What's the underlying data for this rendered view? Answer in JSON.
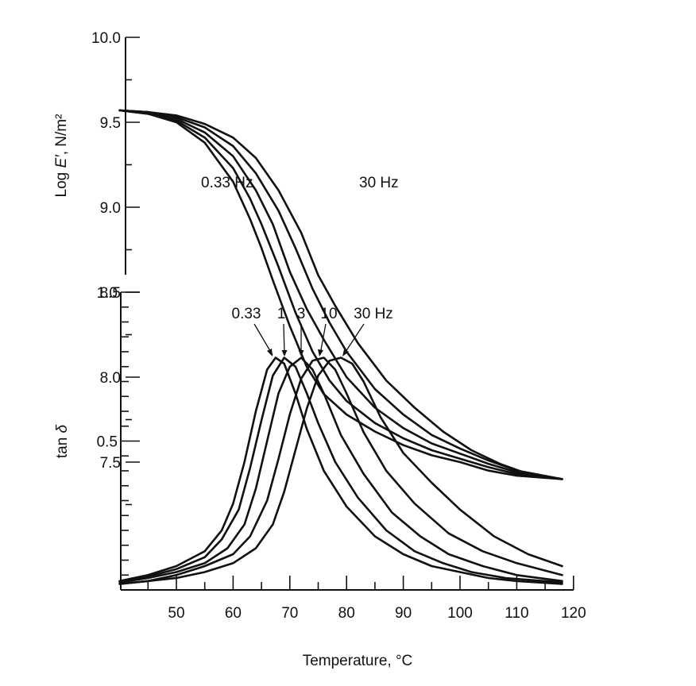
{
  "chart_data": [
    {
      "type": "line",
      "ylabel_prefix": "Log ",
      "ylabel_symbol": "E′",
      "ylabel_suffix": ", N/m²",
      "ylim": [
        7.2,
        10.0
      ],
      "yticks": [
        7.5,
        8.0,
        8.5,
        9.0,
        9.5,
        10.0
      ],
      "ytick_labels": [
        "7.5",
        "8.0",
        "8.5",
        "9.0",
        "9.5",
        "10.0"
      ],
      "xlim": [
        40,
        118
      ],
      "grid": false,
      "annotations": [
        "0.33 Hz",
        "30 Hz"
      ],
      "series": [
        {
          "values": [
            [
              40,
              9.57
            ],
            [
              45,
              9.55
            ],
            [
              50,
              9.5
            ],
            [
              55,
              9.38
            ],
            [
              60,
              9.15
            ],
            [
              63,
              8.93
            ],
            [
              65,
              8.76
            ],
            [
              67,
              8.57
            ],
            [
              70,
              8.3
            ],
            [
              73,
              8.06
            ],
            [
              76,
              7.9
            ],
            [
              80,
              7.78
            ],
            [
              85,
              7.68
            ],
            [
              90,
              7.6
            ],
            [
              95,
              7.54
            ],
            [
              100,
              7.5
            ],
            [
              105,
              7.45
            ],
            [
              110,
              7.42
            ],
            [
              118,
              7.4
            ]
          ]
        },
        {
          "values": [
            [
              40,
              9.57
            ],
            [
              45,
              9.55
            ],
            [
              50,
              9.51
            ],
            [
              55,
              9.41
            ],
            [
              60,
              9.23
            ],
            [
              63,
              9.05
            ],
            [
              65,
              8.9
            ],
            [
              68,
              8.65
            ],
            [
              71,
              8.38
            ],
            [
              74,
              8.15
            ],
            [
              77,
              7.98
            ],
            [
              80,
              7.86
            ],
            [
              85,
              7.73
            ],
            [
              90,
              7.64
            ],
            [
              95,
              7.57
            ],
            [
              100,
              7.52
            ],
            [
              105,
              7.47
            ],
            [
              110,
              7.43
            ],
            [
              118,
              7.4
            ]
          ]
        },
        {
          "values": [
            [
              40,
              9.57
            ],
            [
              45,
              9.56
            ],
            [
              50,
              9.52
            ],
            [
              55,
              9.44
            ],
            [
              60,
              9.3
            ],
            [
              64,
              9.1
            ],
            [
              67,
              8.9
            ],
            [
              70,
              8.62
            ],
            [
              73,
              8.4
            ],
            [
              76,
              8.22
            ],
            [
              80,
              8.0
            ],
            [
              85,
              7.82
            ],
            [
              90,
              7.7
            ],
            [
              95,
              7.61
            ],
            [
              100,
              7.55
            ],
            [
              105,
              7.49
            ],
            [
              110,
              7.44
            ],
            [
              118,
              7.4
            ]
          ]
        },
        {
          "values": [
            [
              40,
              9.57
            ],
            [
              45,
              9.56
            ],
            [
              50,
              9.53
            ],
            [
              55,
              9.47
            ],
            [
              60,
              9.36
            ],
            [
              64,
              9.2
            ],
            [
              68,
              8.98
            ],
            [
              71,
              8.76
            ],
            [
              74,
              8.52
            ],
            [
              77,
              8.32
            ],
            [
              80,
              8.15
            ],
            [
              85,
              7.93
            ],
            [
              90,
              7.78
            ],
            [
              95,
              7.66
            ],
            [
              100,
              7.58
            ],
            [
              105,
              7.51
            ],
            [
              110,
              7.45
            ],
            [
              118,
              7.4
            ]
          ]
        },
        {
          "values": [
            [
              40,
              9.57
            ],
            [
              45,
              9.56
            ],
            [
              50,
              9.54
            ],
            [
              55,
              9.49
            ],
            [
              60,
              9.41
            ],
            [
              64,
              9.29
            ],
            [
              68,
              9.1
            ],
            [
              72,
              8.85
            ],
            [
              75,
              8.6
            ],
            [
              78,
              8.42
            ],
            [
              82,
              8.2
            ],
            [
              87,
              7.98
            ],
            [
              92,
              7.82
            ],
            [
              97,
              7.68
            ],
            [
              102,
              7.57
            ],
            [
              107,
              7.49
            ],
            [
              112,
              7.43
            ],
            [
              118,
              7.4
            ]
          ]
        }
      ]
    },
    {
      "type": "line",
      "ylabel_prefix": "tan ",
      "ylabel_symbol": "δ",
      "ylim": [
        0.0,
        1.0
      ],
      "yticks": [
        0.5,
        1.0
      ],
      "ytick_labels": [
        "0.5",
        "1.0"
      ],
      "xlabel": "Temperature, °C",
      "xlim": [
        40,
        122
      ],
      "xticks": [
        50,
        60,
        70,
        80,
        90,
        100,
        110,
        120
      ],
      "xtick_labels": [
        "50",
        "60",
        "70",
        "80",
        "90",
        "100",
        "110",
        "120"
      ],
      "grid": false,
      "annotations": [
        "0.33",
        "1",
        "3",
        "10",
        "30 Hz"
      ],
      "series": [
        {
          "values": [
            [
              40,
              0.03
            ],
            [
              45,
              0.05
            ],
            [
              50,
              0.08
            ],
            [
              55,
              0.13
            ],
            [
              58,
              0.2
            ],
            [
              60,
              0.29
            ],
            [
              62,
              0.43
            ],
            [
              64,
              0.6
            ],
            [
              66,
              0.74
            ],
            [
              67.5,
              0.78
            ],
            [
              69,
              0.76
            ],
            [
              71,
              0.66
            ],
            [
              73,
              0.54
            ],
            [
              76,
              0.4
            ],
            [
              80,
              0.28
            ],
            [
              85,
              0.18
            ],
            [
              90,
              0.12
            ],
            [
              95,
              0.08
            ],
            [
              100,
              0.06
            ],
            [
              105,
              0.04
            ],
            [
              110,
              0.03
            ],
            [
              118,
              0.02
            ]
          ]
        },
        {
          "values": [
            [
              40,
              0.03
            ],
            [
              45,
              0.045
            ],
            [
              50,
              0.07
            ],
            [
              55,
              0.11
            ],
            [
              58,
              0.17
            ],
            [
              61,
              0.27
            ],
            [
              63,
              0.41
            ],
            [
              65,
              0.57
            ],
            [
              67,
              0.72
            ],
            [
              69,
              0.78
            ],
            [
              71,
              0.75
            ],
            [
              73,
              0.66
            ],
            [
              75,
              0.56
            ],
            [
              78,
              0.43
            ],
            [
              82,
              0.31
            ],
            [
              87,
              0.2
            ],
            [
              92,
              0.13
            ],
            [
              97,
              0.09
            ],
            [
              102,
              0.06
            ],
            [
              108,
              0.04
            ],
            [
              118,
              0.025
            ]
          ]
        },
        {
          "values": [
            [
              40,
              0.025
            ],
            [
              45,
              0.04
            ],
            [
              50,
              0.06
            ],
            [
              55,
              0.09
            ],
            [
              59,
              0.14
            ],
            [
              62,
              0.22
            ],
            [
              64,
              0.34
            ],
            [
              66,
              0.5
            ],
            [
              68,
              0.66
            ],
            [
              70,
              0.75
            ],
            [
              72,
              0.78
            ],
            [
              74,
              0.74
            ],
            [
              76,
              0.66
            ],
            [
              79,
              0.52
            ],
            [
              83,
              0.39
            ],
            [
              88,
              0.26
            ],
            [
              93,
              0.18
            ],
            [
              98,
              0.12
            ],
            [
              104,
              0.08
            ],
            [
              110,
              0.05
            ],
            [
              118,
              0.03
            ]
          ]
        },
        {
          "values": [
            [
              40,
              0.02
            ],
            [
              45,
              0.03
            ],
            [
              50,
              0.05
            ],
            [
              55,
              0.08
            ],
            [
              60,
              0.12
            ],
            [
              63,
              0.18
            ],
            [
              66,
              0.3
            ],
            [
              68,
              0.44
            ],
            [
              70,
              0.59
            ],
            [
              72,
              0.71
            ],
            [
              74,
              0.77
            ],
            [
              76,
              0.78
            ],
            [
              78,
              0.74
            ],
            [
              80,
              0.66
            ],
            [
              83,
              0.53
            ],
            [
              87,
              0.4
            ],
            [
              92,
              0.29
            ],
            [
              98,
              0.19
            ],
            [
              104,
              0.13
            ],
            [
              110,
              0.09
            ],
            [
              118,
              0.05
            ]
          ]
        },
        {
          "values": [
            [
              40,
              0.02
            ],
            [
              45,
              0.03
            ],
            [
              50,
              0.04
            ],
            [
              55,
              0.06
            ],
            [
              60,
              0.09
            ],
            [
              64,
              0.14
            ],
            [
              67,
              0.22
            ],
            [
              69,
              0.33
            ],
            [
              71,
              0.47
            ],
            [
              73,
              0.61
            ],
            [
              75,
              0.72
            ],
            [
              77,
              0.77
            ],
            [
              79,
              0.78
            ],
            [
              81,
              0.76
            ],
            [
              83,
              0.7
            ],
            [
              86,
              0.58
            ],
            [
              90,
              0.46
            ],
            [
              95,
              0.36
            ],
            [
              100,
              0.27
            ],
            [
              106,
              0.18
            ],
            [
              112,
              0.12
            ],
            [
              118,
              0.08
            ]
          ]
        }
      ]
    }
  ]
}
